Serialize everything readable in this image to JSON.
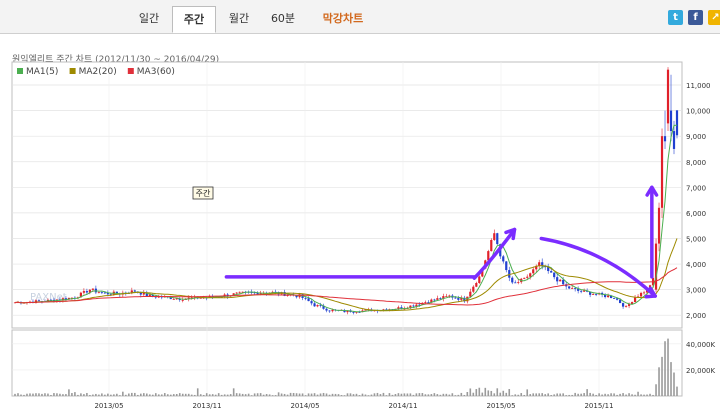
{
  "tabs": [
    {
      "label": "일간"
    },
    {
      "label": "주간"
    },
    {
      "label": "월간"
    },
    {
      "label": "60분"
    },
    {
      "label": "막강차트"
    }
  ],
  "chart_title": "원익엘리트 주간 차트 (2012/11/30 ~ 2016/04/29)",
  "period_badge": "주간",
  "watermark": "PAXNet",
  "icons": [
    "twitter-icon",
    "facebook-icon",
    "link-icon"
  ],
  "chart_data": {
    "type": "candlestick",
    "legend": [
      {
        "name": "MA1(5)",
        "color": "#4caf50"
      },
      {
        "name": "MA2(20)",
        "color": "#9e8a00"
      },
      {
        "name": "MA3(60)",
        "color": "#e0303a"
      }
    ],
    "x_tick_labels": [
      "2013/05",
      "2013/11",
      "2014/05",
      "2014/11",
      "2015/05",
      "2015/11"
    ],
    "y_tick_labels": [
      "2,000",
      "3,000",
      "4,000",
      "5,000",
      "6,000",
      "7,000",
      "8,000",
      "9,000",
      "10,000",
      "11,000"
    ],
    "ylim": [
      1500,
      11900
    ],
    "volume_tick_labels": [
      "20,000K",
      "40,000K"
    ],
    "volume_ylim": [
      0,
      46000
    ],
    "anchors": [
      [
        0,
        2500
      ],
      [
        10,
        2550
      ],
      [
        20,
        2700
      ],
      [
        25,
        3000
      ],
      [
        30,
        2850
      ],
      [
        35,
        2850
      ],
      [
        40,
        2950
      ],
      [
        45,
        2750
      ],
      [
        55,
        2650
      ],
      [
        65,
        2700
      ],
      [
        75,
        2850
      ],
      [
        85,
        2900
      ],
      [
        95,
        2750
      ],
      [
        100,
        2400
      ],
      [
        105,
        2200
      ],
      [
        110,
        2150
      ],
      [
        120,
        2200
      ],
      [
        130,
        2300
      ],
      [
        138,
        2550
      ],
      [
        145,
        2750
      ],
      [
        150,
        2600
      ],
      [
        155,
        3500
      ],
      [
        158,
        4500
      ],
      [
        160,
        5200
      ],
      [
        163,
        4000
      ],
      [
        166,
        3200
      ],
      [
        170,
        3400
      ],
      [
        175,
        4000
      ],
      [
        179,
        3600
      ],
      [
        184,
        3100
      ],
      [
        188,
        2950
      ],
      [
        195,
        2800
      ],
      [
        200,
        2700
      ],
      [
        204,
        2300
      ],
      [
        207,
        2700
      ],
      [
        211,
        3000
      ],
      [
        213,
        3400
      ],
      [
        215,
        6000
      ],
      [
        217,
        9000
      ],
      [
        219,
        10600
      ],
      [
        221,
        9000
      ]
    ],
    "spike_candles": [
      {
        "i": 214,
        "o": 3000,
        "c": 4800,
        "h": 5000,
        "l": 2900
      },
      {
        "i": 215,
        "o": 4800,
        "c": 6200,
        "h": 6400,
        "l": 4500
      },
      {
        "i": 216,
        "o": 6200,
        "c": 9000,
        "h": 9300,
        "l": 5800
      },
      {
        "i": 217,
        "o": 9000,
        "c": 8800,
        "h": 10000,
        "l": 8500
      },
      {
        "i": 218,
        "o": 9500,
        "c": 11600,
        "h": 11700,
        "l": 9200
      },
      {
        "i": 219,
        "o": 10000,
        "c": 9200,
        "h": 11400,
        "l": 8800
      },
      {
        "i": 220,
        "o": 9200,
        "c": 8500,
        "h": 9600,
        "l": 8300
      }
    ],
    "annotations": [
      {
        "type": "horizontal-arrow",
        "from": [
          0.32,
          3500
        ],
        "to": [
          0.69,
          3500
        ],
        "color": "#7b2cff"
      },
      {
        "type": "up-arrow",
        "from": [
          0.69,
          3450
        ],
        "to": [
          0.75,
          5350
        ],
        "color": "#7b2cff"
      },
      {
        "type": "down-arrow",
        "from": [
          0.79,
          5000
        ],
        "to": [
          0.96,
          2750
        ],
        "color": "#7b2cff"
      },
      {
        "type": "big-up-arrow",
        "from": [
          0.955,
          3500
        ],
        "to": [
          0.955,
          7000
        ],
        "color": "#7b2cff"
      }
    ]
  }
}
